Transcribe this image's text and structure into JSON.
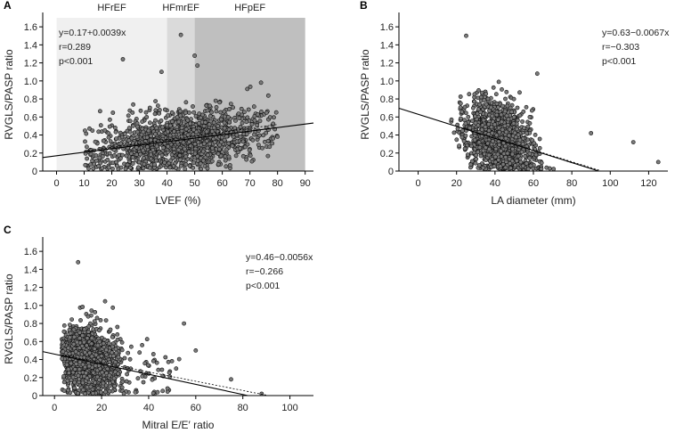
{
  "chart_data": [
    {
      "id": "A",
      "type": "scatter",
      "panel_label": "A",
      "xlabel": "LVEF (%)",
      "ylabel": "RVGLS/PASP ratio",
      "xlim": [
        -5,
        93
      ],
      "ylim": [
        0,
        1.7
      ],
      "x_ticks": [
        0,
        10,
        20,
        30,
        40,
        50,
        60,
        70,
        80,
        90
      ],
      "y_ticks": [
        0,
        0.2,
        0.4,
        0.6,
        0.8,
        1.0,
        1.2,
        1.4,
        1.6
      ],
      "y_tick_labels": [
        "0",
        "0.2",
        "0.4",
        "0.6",
        "0.8",
        "1.0",
        "1.2",
        "1.4",
        "1.6"
      ],
      "zones": [
        {
          "name": "HFrEF",
          "x_range": [
            0,
            40
          ],
          "color": "#f0f0f0"
        },
        {
          "name": "HFmrEF",
          "x_range": [
            40,
            50
          ],
          "color": "#dadada"
        },
        {
          "name": "HFpEF",
          "x_range": [
            50,
            90
          ],
          "color": "#bfbfbf"
        }
      ],
      "fit": {
        "intercept": 0.17,
        "slope": 0.0039
      },
      "annotation": [
        "y=0.17+0.0039x",
        "r=0.289",
        "p<0.001"
      ],
      "point_cloud": {
        "n": 1300,
        "x_range": [
          10,
          80
        ],
        "x_center": 45,
        "x_spread": 17,
        "y_base": 0.17,
        "y_slope": 0.0039,
        "y_spread": 0.17
      },
      "outliers": [
        [
          24,
          1.24
        ],
        [
          45,
          1.51
        ],
        [
          50,
          1.28
        ],
        [
          51,
          1.17
        ],
        [
          38,
          1.1
        ],
        [
          74,
          0.98
        ]
      ]
    },
    {
      "id": "B",
      "type": "scatter",
      "panel_label": "B",
      "xlabel": "LA diameter (mm)",
      "ylabel": "RVGLS/PASP ratio",
      "xlim": [
        -10,
        130
      ],
      "ylim": [
        0,
        1.7
      ],
      "x_ticks": [
        0,
        20,
        40,
        60,
        80,
        100,
        120
      ],
      "y_ticks": [
        0,
        0.2,
        0.4,
        0.6,
        0.8,
        1.0,
        1.2,
        1.4,
        1.6
      ],
      "y_tick_labels": [
        "0",
        "0.2",
        "0.4",
        "0.6",
        "0.8",
        "1.0",
        "1.2",
        "1.4",
        "1.6"
      ],
      "fit": {
        "intercept": 0.63,
        "slope": -0.0067
      },
      "annotation": [
        "y=0.63−0.0067x",
        "r=−0.303",
        "p<0.001"
      ],
      "point_cloud": {
        "n": 1300,
        "x_range": [
          17,
          95
        ],
        "x_center": 42,
        "x_spread": 9,
        "y_base": 0.63,
        "y_slope": -0.0067,
        "y_spread": 0.2
      },
      "outliers": [
        [
          25,
          1.5
        ],
        [
          112,
          0.32
        ],
        [
          125,
          0.1
        ],
        [
          90,
          0.42
        ],
        [
          62,
          1.08
        ]
      ]
    },
    {
      "id": "C",
      "type": "scatter",
      "panel_label": "C",
      "xlabel": "Mitral E/E′ ratio",
      "ylabel": "RVGLS/PASP ratio",
      "xlim": [
        -5,
        110
      ],
      "ylim": [
        0,
        1.7
      ],
      "x_ticks": [
        0,
        20,
        40,
        60,
        80,
        100
      ],
      "y_ticks": [
        0,
        0.2,
        0.4,
        0.6,
        0.8,
        1.0,
        1.2,
        1.4,
        1.6
      ],
      "y_tick_labels": [
        "0",
        "0.2",
        "0.4",
        "0.6",
        "0.8",
        "1.0",
        "1.2",
        "1.4",
        "1.6"
      ],
      "fit": {
        "intercept": 0.46,
        "slope": -0.0056
      },
      "annotation": [
        "y=0.46−0.0056x",
        "r=−0.266",
        "p<0.001"
      ],
      "point_cloud": {
        "n": 1300,
        "x_range": [
          3,
          90
        ],
        "x_center": 14,
        "x_spread": 7,
        "y_base": 0.46,
        "y_slope": -0.0056,
        "y_spread": 0.19
      },
      "outliers": [
        [
          10,
          1.48
        ],
        [
          88,
          0.02
        ],
        [
          55,
          0.8
        ],
        [
          60,
          0.5
        ],
        [
          75,
          0.18
        ]
      ]
    }
  ]
}
